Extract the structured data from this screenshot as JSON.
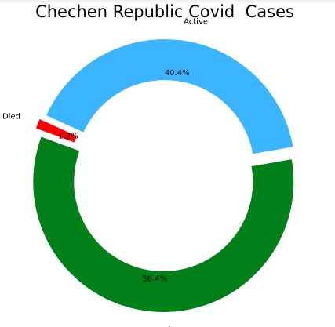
{
  "chart_data": {
    "type": "pie",
    "donut": true,
    "title": "Chechen Republic Covid  Cases",
    "categories": [
      "Active",
      "Died",
      "Recovered"
    ],
    "values": [
      40.4,
      1.2,
      58.4
    ],
    "value_labels": [
      "40.4%",
      "1.2%",
      "58.4%"
    ],
    "colors": [
      "#3bb5ff",
      "#ff0000",
      "#008018"
    ],
    "exploded": true,
    "legend": "none"
  }
}
